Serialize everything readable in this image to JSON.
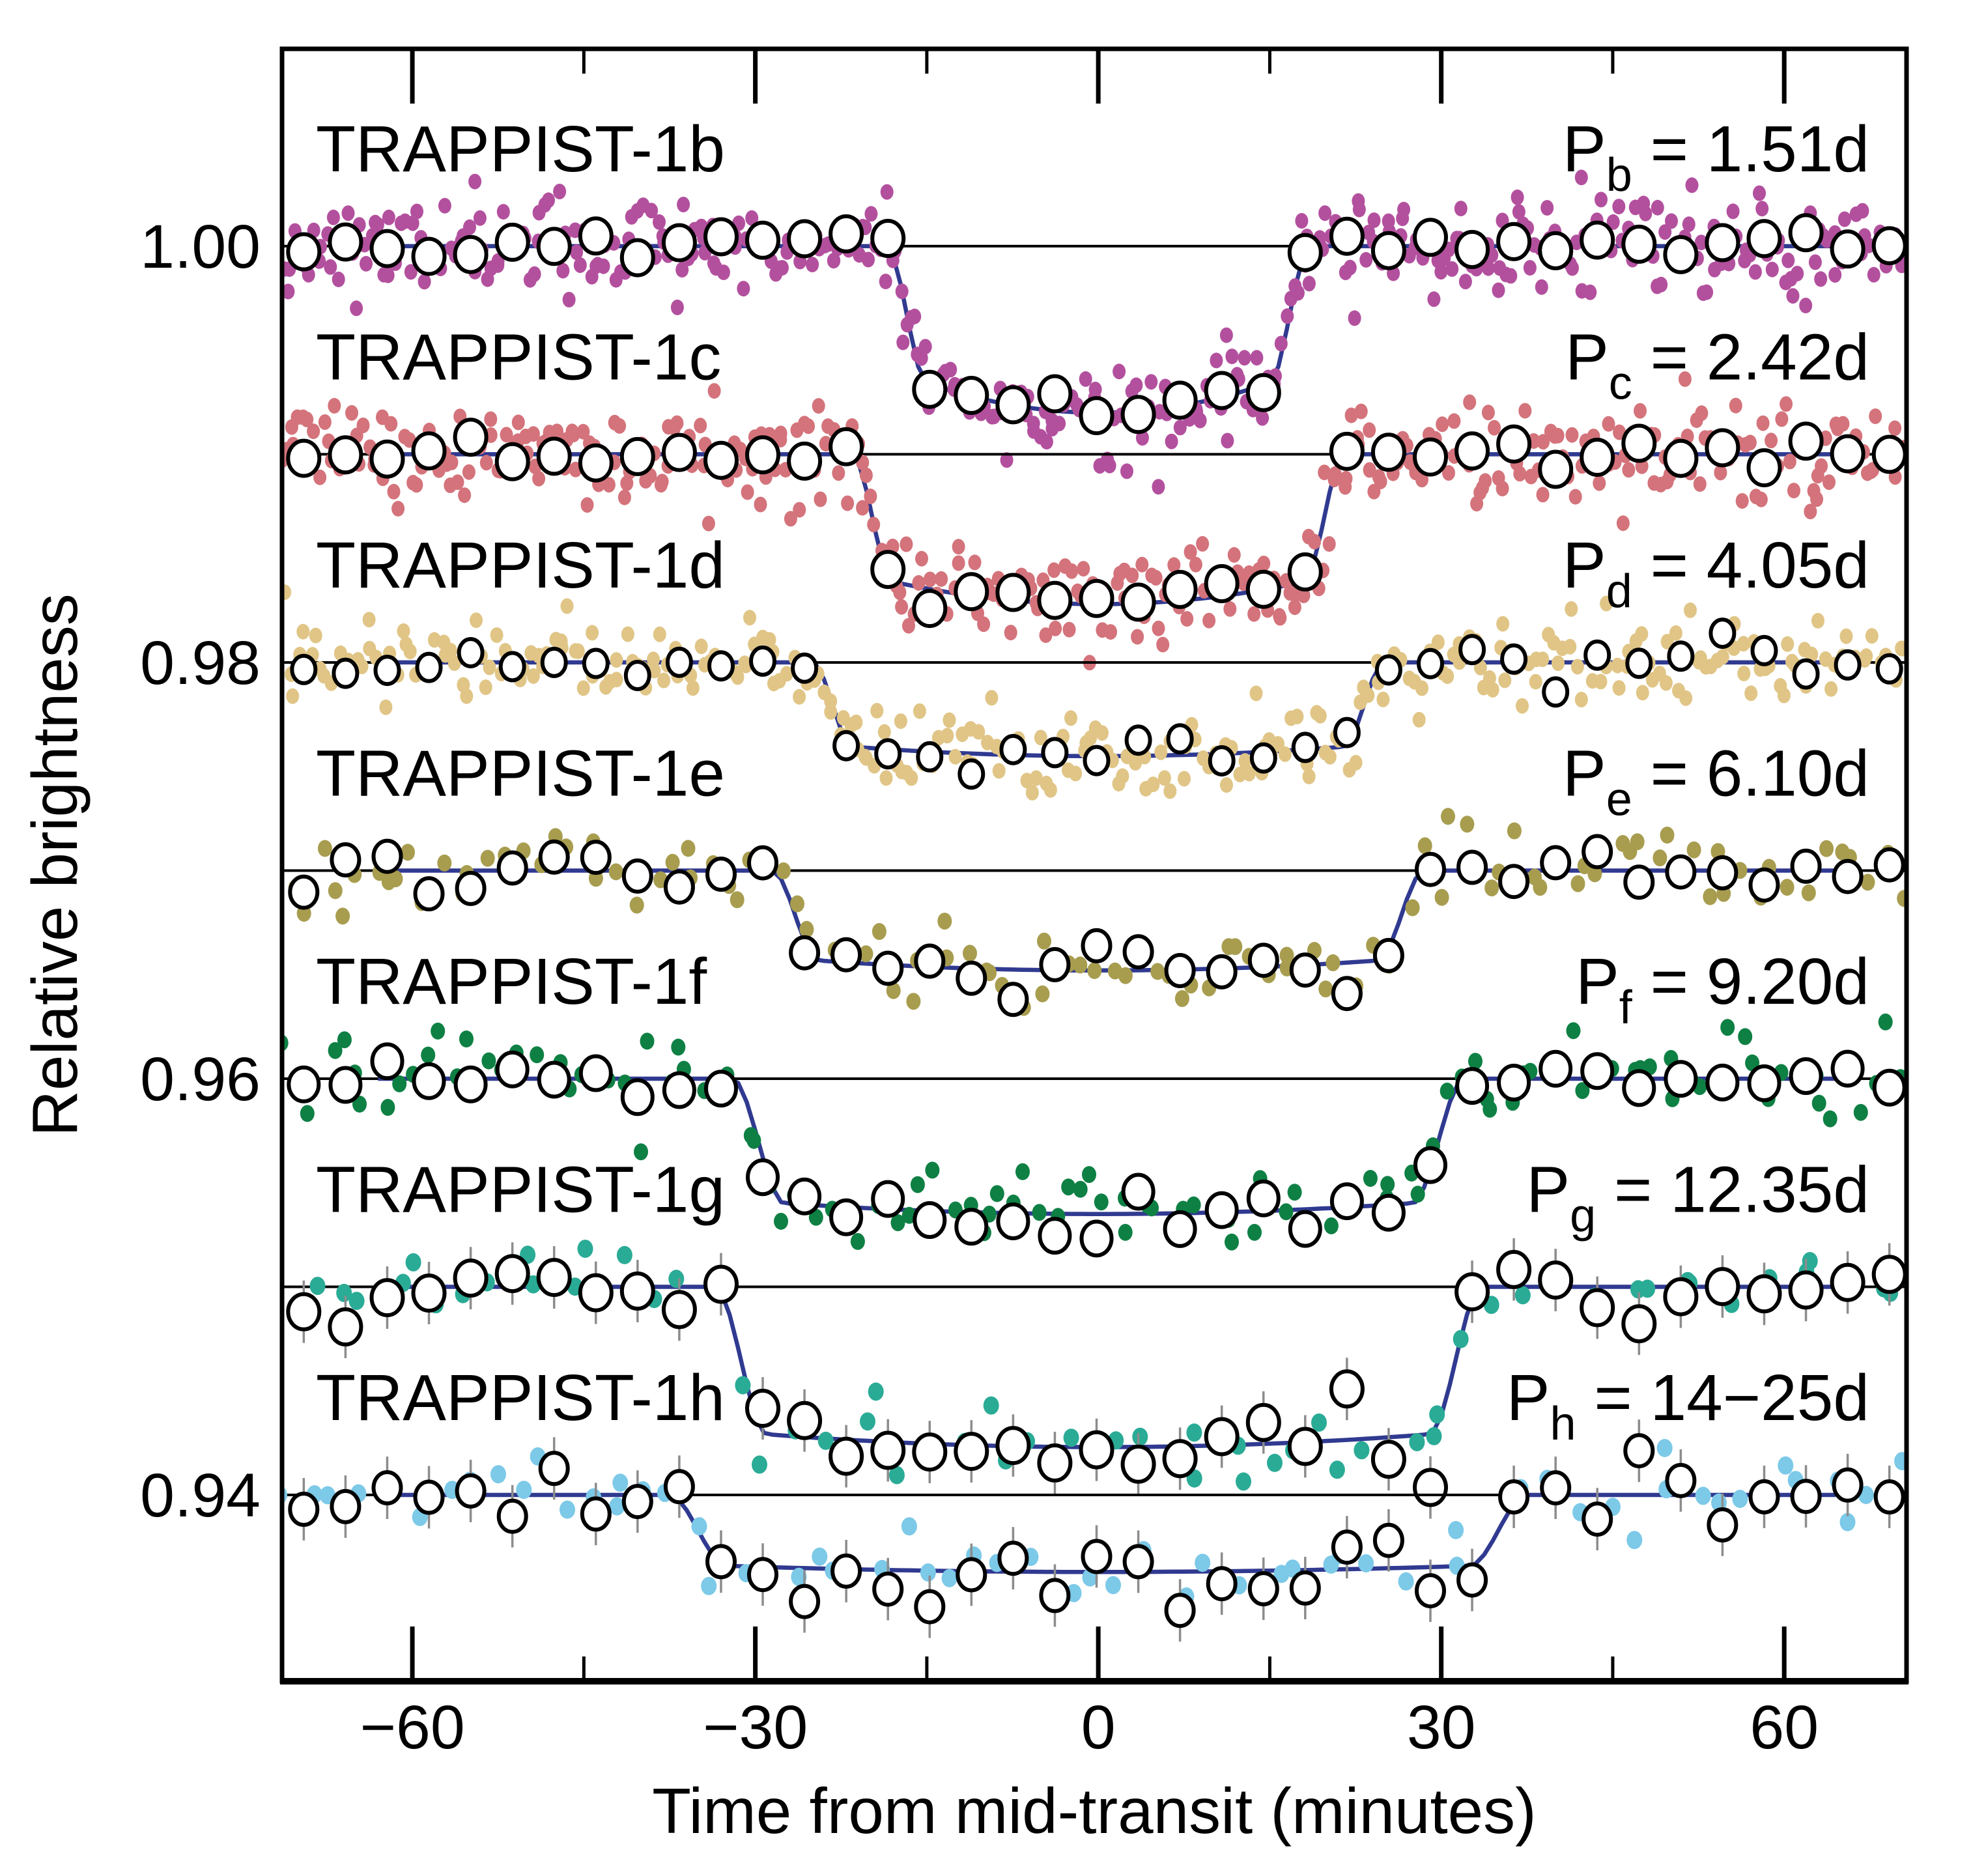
{
  "figure": {
    "description": "TRAPPIST-1 planetary transit light curves, seven planets stacked with vertical offsets",
    "background": "#ffffff",
    "text_color": "#000000"
  },
  "chart_data": {
    "type": "scatter",
    "title": "",
    "xlabel": "Time from mid-transit (minutes)",
    "ylabel": "Relative brightness",
    "xlim": [
      -71.4,
      70.7
    ],
    "ylim": [
      0.93105,
      1.00948
    ],
    "grid": false,
    "legend_position": "none",
    "x_major_ticks": [
      -60,
      -30,
      0,
      30,
      60
    ],
    "x_major_tick_labels": [
      "−60",
      "−30",
      "0",
      "30",
      "60"
    ],
    "x_minor_ticks": [
      -45,
      -15,
      15,
      45
    ],
    "y_major_ticks": [
      1.0,
      0.98,
      0.96,
      0.94
    ],
    "y_major_tick_labels": [
      "1.00",
      "0.98",
      "0.96",
      "0.94"
    ],
    "model_line_color": "#303a90",
    "baseline_line_color": "#000000",
    "errorbar_color": "#8c8c8c",
    "model_t_range": [
      -63,
      64.5
    ],
    "bin_spacing_minutes": 3.65,
    "bin_start_minutes": -69.5,
    "series": [
      {
        "id": "b",
        "name_label": "TRAPPIST-1b",
        "period_prefix": "P",
        "period_sub": "b",
        "period_rest": " = 1.51d",
        "color": "#b3509e",
        "baseline": 1.0,
        "depth": 0.008,
        "contacts": [
          -18.5,
          -15.0,
          15.0,
          18.5
        ],
        "floor_curvature": 0.18,
        "n_points": 430,
        "noise_sigma": 0.00115,
        "point_rx": 10,
        "point_ry": 12,
        "bin_sigma": 0.00035,
        "bin_rx": 24,
        "bin_ry": 27,
        "errorbar": 0,
        "seed": 11
      },
      {
        "id": "c",
        "name_label": "TRAPPIST-1c",
        "period_prefix": "P",
        "period_sub": "c",
        "period_rest": " = 2.42d",
        "color": "#d4737b",
        "baseline": 0.99,
        "depth": 0.0072,
        "contacts": [
          -21.5,
          -18.0,
          18.0,
          21.5
        ],
        "floor_curvature": 0.15,
        "n_points": 420,
        "noise_sigma": 0.00115,
        "point_rx": 10,
        "point_ry": 12,
        "bin_sigma": 0.00035,
        "bin_rx": 24,
        "bin_ry": 27,
        "errorbar": 0,
        "seed": 23
      },
      {
        "id": "d",
        "name_label": "TRAPPIST-1d",
        "period_prefix": "P",
        "period_sub": "d",
        "period_rest": " = 4.05d",
        "color": "#e0c586",
        "baseline": 0.98,
        "depth": 0.0045,
        "contacts": [
          -25.0,
          -21.5,
          21.5,
          25.0
        ],
        "floor_curvature": 0.1,
        "n_points": 320,
        "noise_sigma": 0.001,
        "point_rx": 10,
        "point_ry": 12,
        "bin_sigma": 0.0005,
        "bin_rx": 18,
        "bin_ry": 21,
        "errorbar": 0,
        "seed": 37
      },
      {
        "id": "e",
        "name_label": "TRAPPIST-1e",
        "period_prefix": "P",
        "period_sub": "e",
        "period_rest": " = 6.10d",
        "color": "#a89d4f",
        "baseline": 0.97,
        "depth": 0.0048,
        "contacts": [
          -28.5,
          -24.5,
          24.5,
          28.5
        ],
        "floor_curvature": 0.1,
        "n_points": 115,
        "noise_sigma": 0.00105,
        "point_rx": 11,
        "point_ry": 13,
        "bin_sigma": 0.0006,
        "bin_rx": 21,
        "bin_ry": 24,
        "errorbar": 0,
        "seed": 41
      },
      {
        "id": "f",
        "name_label": "TRAPPIST-1f",
        "period_prefix": "P",
        "period_sub": "f",
        "period_rest": " = 9.20d",
        "color": "#0e8044",
        "baseline": 0.96,
        "depth": 0.0065,
        "contacts": [
          -32.0,
          -27.5,
          27.5,
          32.0
        ],
        "floor_curvature": 0.08,
        "n_points": 125,
        "noise_sigma": 0.001,
        "point_rx": 11,
        "point_ry": 13,
        "bin_sigma": 0.0006,
        "bin_rx": 23,
        "bin_ry": 26,
        "errorbar": 0,
        "seed": 53
      },
      {
        "id": "g",
        "name_label": "TRAPPIST-1g",
        "period_prefix": "P",
        "period_sub": "g",
        "period_rest": " = 12.35d",
        "color": "#2aab96",
        "baseline": 0.95,
        "depth": 0.0077,
        "contacts": [
          -33.5,
          -29.0,
          29.0,
          33.5
        ],
        "floor_curvature": 0.08,
        "n_points": 66,
        "noise_sigma": 0.00085,
        "point_rx": 12,
        "point_ry": 14,
        "bin_sigma": 0.0009,
        "bin_rx": 24,
        "bin_ry": 27,
        "errorbar": 0.0015,
        "seed": 67
      },
      {
        "id": "h",
        "name_label": "TRAPPIST-1h",
        "period_prefix": "P",
        "period_sub": "h",
        "period_rest": " = 14−25d",
        "color": "#7cc9e8",
        "baseline": 0.94,
        "depth": 0.0037,
        "contacts": [
          -37.5,
          -32.5,
          32.5,
          37.5
        ],
        "floor_curvature": 0.08,
        "n_points": 68,
        "noise_sigma": 0.00085,
        "point_rx": 12,
        "point_ry": 14,
        "bin_sigma": 0.0009,
        "bin_rx": 21,
        "bin_ry": 24,
        "errorbar": 0.0015,
        "seed": 79
      }
    ]
  }
}
